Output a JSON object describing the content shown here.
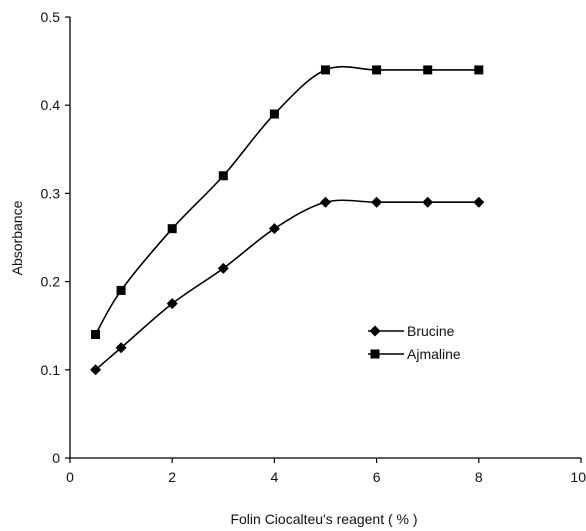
{
  "chart_data": {
    "type": "line",
    "title": "",
    "xlabel": "Folin Ciocalteu's reagent ( % )",
    "ylabel": "Absorbance",
    "xlim": [
      0,
      10
    ],
    "ylim": [
      0,
      0.5
    ],
    "xticks": [
      0,
      2,
      4,
      6,
      8,
      10
    ],
    "yticks": [
      0,
      0.1,
      0.2,
      0.3,
      0.4,
      0.5
    ],
    "xtick_labels": [
      "0",
      "2",
      "4",
      "6",
      "8",
      "10"
    ],
    "ytick_labels": [
      "0",
      "0.1",
      "0.2",
      "0.3",
      "0.4",
      "0.5"
    ],
    "grid": false,
    "legend_position": "right-middle",
    "series": [
      {
        "name": "Brucine",
        "marker": "diamond",
        "color": "#000000",
        "x": [
          0.5,
          1,
          2,
          3,
          4,
          5,
          6,
          7,
          8
        ],
        "y": [
          0.1,
          0.125,
          0.175,
          0.215,
          0.26,
          0.29,
          0.29,
          0.29,
          0.29
        ]
      },
      {
        "name": "Ajmaline",
        "marker": "square",
        "color": "#000000",
        "x": [
          0.5,
          1,
          2,
          3,
          4,
          5,
          6,
          7,
          8
        ],
        "y": [
          0.14,
          0.19,
          0.26,
          0.32,
          0.39,
          0.44,
          0.44,
          0.44,
          0.44
        ]
      }
    ]
  }
}
